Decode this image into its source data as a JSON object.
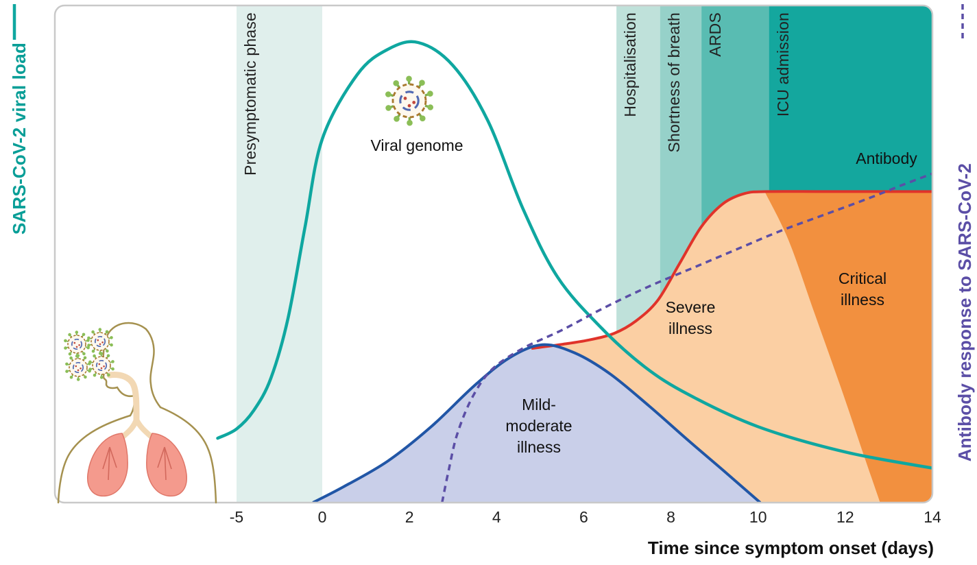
{
  "figure": {
    "left_axis_title": "SARS-CoV-2 viral load",
    "right_axis_title": "Antibody response to SARS-CoV-2",
    "x_axis_title": "Time since symptom onset (days)"
  },
  "annotations": {
    "viral_genome": "Viral genome",
    "antibody": "Antibody",
    "mild": "Mild-\nmoderate\nillness",
    "severe": "Severe\nillness",
    "critical": "Critical\nillness"
  },
  "icons": {
    "virus": "virus-icon",
    "human_figure": "human-figure-with-lungs-illustration",
    "viral_load_legend": "solid-teal-line",
    "antibody_legend": "dashed-purple-line"
  },
  "colors": {
    "left_axis": "#089e97",
    "right_axis": "#5b4ea6",
    "border": "#c9c9c9",
    "text": "#111111"
  },
  "chart_data": {
    "type": "area",
    "title": "",
    "xlabel": "Time since symptom onset (days)",
    "ylabel_left": "SARS-CoV-2 viral load (relative scale, no numeric axis shown)",
    "ylabel_right": "Antibody response to SARS-CoV-2 (relative scale, no numeric axis shown)",
    "x_ticks": [
      -5,
      0,
      2,
      4,
      6,
      8,
      10,
      12,
      14
    ],
    "x_range": [
      -6.1,
      14
    ],
    "y_range": [
      0,
      100
    ],
    "x_scale_note": "segment from day -5 to 0 (presymptomatic) is compressed, not to scale",
    "grid": false,
    "legend_position": "outer-left and outer-right rotated axis labels",
    "bands": [
      {
        "key": "presymptomatic",
        "label": "Presymptomatic phase",
        "x0": -5,
        "x1": 0,
        "color": "#e0efec"
      },
      {
        "key": "hospitalisation",
        "label": "Hospitalisation",
        "x0": 6.75,
        "x1": 7.75,
        "color": "#bfe1da"
      },
      {
        "key": "shortness-of-breath",
        "label": "Shortness of breath",
        "x0": 7.75,
        "x1": 8.7,
        "color": "#96d1c9"
      },
      {
        "key": "ards",
        "label": "ARDS",
        "x0": 8.7,
        "x1": 10.25,
        "color": "#59bcb2"
      },
      {
        "key": "icu-admission",
        "label": "ICU admission",
        "x0": 10.25,
        "x1": 14,
        "color": "#14a79e"
      }
    ],
    "series": [
      {
        "key": "viral",
        "name": "SARS-CoV-2 viral load",
        "style": "line",
        "color": "#0fa7a0",
        "points": [
          [
            -6.1,
            14
          ],
          [
            -5,
            16
          ],
          [
            -4,
            20
          ],
          [
            -3,
            27
          ],
          [
            -2,
            40
          ],
          [
            -1,
            60
          ],
          [
            0,
            79
          ],
          [
            0.8,
            93
          ],
          [
            1.5,
            98.5
          ],
          [
            2.2,
            100
          ],
          [
            3,
            95
          ],
          [
            3.8,
            83
          ],
          [
            4.6,
            64
          ],
          [
            5.4,
            49
          ],
          [
            6.4,
            38
          ],
          [
            7.4,
            29.5
          ],
          [
            8.4,
            23.5
          ],
          [
            10,
            16.5
          ],
          [
            12,
            11
          ],
          [
            14,
            7.5
          ]
        ]
      },
      {
        "key": "antibody",
        "name": "Antibody response to SARS-CoV-2",
        "style": "dashed-line",
        "color": "#5b4ea6",
        "points": [
          [
            2.75,
            0
          ],
          [
            2.9,
            7
          ],
          [
            3.1,
            15
          ],
          [
            3.45,
            23
          ],
          [
            3.9,
            29
          ],
          [
            4.6,
            33.5
          ],
          [
            5.5,
            37.5
          ],
          [
            6.5,
            42.5
          ],
          [
            7.5,
            47
          ],
          [
            8.5,
            51
          ],
          [
            9.5,
            55
          ],
          [
            10.5,
            59
          ],
          [
            11.5,
            62.5
          ],
          [
            12.5,
            66
          ],
          [
            13.3,
            69
          ],
          [
            14,
            71.5
          ]
        ]
      },
      {
        "key": "mild",
        "name": "Mild-moderate illness",
        "style": "area",
        "color": "#2156a6",
        "fill": "#c9cfe9",
        "points": [
          [
            -0.55,
            0
          ],
          [
            0.5,
            3.5
          ],
          [
            1.5,
            9
          ],
          [
            2.5,
            16.5
          ],
          [
            3.5,
            25.5
          ],
          [
            4.3,
            31.5
          ],
          [
            5.05,
            34.3
          ],
          [
            5.8,
            32.5
          ],
          [
            6.6,
            28
          ],
          [
            7.5,
            21
          ],
          [
            8.4,
            13.5
          ],
          [
            9.2,
            7
          ],
          [
            10.05,
            0
          ]
        ]
      },
      {
        "key": "severe",
        "name": "Severe illness",
        "style": "area",
        "color": "#e0332a",
        "fill": "#fbcfa3",
        "points": [
          [
            4.8,
            33.5
          ],
          [
            5.5,
            34.4
          ],
          [
            6.1,
            35.3
          ],
          [
            6.7,
            36.8
          ],
          [
            7.2,
            39.5
          ],
          [
            7.7,
            44
          ],
          [
            8.2,
            52
          ],
          [
            8.7,
            60
          ],
          [
            9.2,
            65
          ],
          [
            9.7,
            67.2
          ],
          [
            10.2,
            67.6
          ],
          [
            11.5,
            67.6
          ],
          [
            13,
            67.6
          ],
          [
            14,
            67.6
          ]
        ]
      },
      {
        "key": "critical",
        "name": "Critical illness",
        "style": "area-boundary",
        "fill": "#f2903f",
        "points": [
          [
            10.15,
            67.6
          ],
          [
            10.7,
            57
          ],
          [
            11.3,
            41
          ],
          [
            11.9,
            25
          ],
          [
            12.4,
            11
          ],
          [
            12.8,
            0
          ]
        ]
      }
    ]
  }
}
